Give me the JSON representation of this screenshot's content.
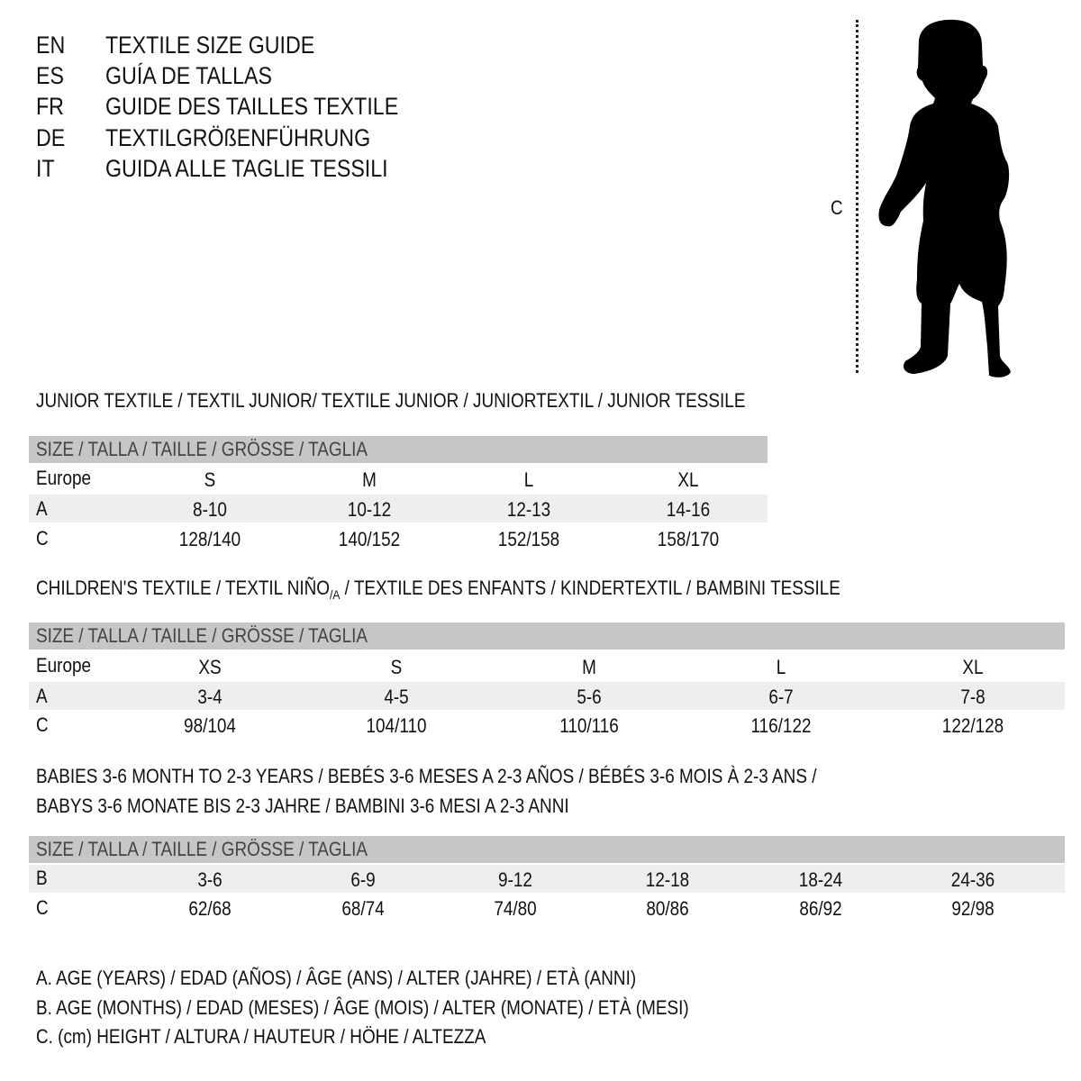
{
  "titles": [
    {
      "code": "EN",
      "text": "TEXTILE SIZE GUIDE"
    },
    {
      "code": "ES",
      "text": "GUÍA DE TALLAS"
    },
    {
      "code": "FR",
      "text": "GUIDE DES TAILLES TEXTILE"
    },
    {
      "code": "DE",
      "text": "TEXTILGRÖßENFÜHRUNG"
    },
    {
      "code": "IT",
      "text": "GUIDA ALLE TAGLIE TESSILI"
    }
  ],
  "figure": {
    "measure_label": "C",
    "icon": "child-silhouette-icon"
  },
  "size_header": "SIZE / TALLA / TAILLE / GRÖSSE / TAGLIA",
  "junior": {
    "heading": "JUNIOR TEXTILE / TEXTIL JUNIOR/ TEXTILE JUNIOR / JUNIORTEXTIL / JUNIOR TESSILE",
    "rows": [
      {
        "label": "Europe",
        "values": [
          "S",
          "M",
          "L",
          "XL"
        ]
      },
      {
        "label": "A",
        "values": [
          "8-10",
          "10-12",
          "12-13",
          "14-16"
        ]
      },
      {
        "label": "C",
        "values": [
          "128/140",
          "140/152",
          "152/158",
          "158/170"
        ]
      }
    ]
  },
  "children": {
    "heading_pre": "CHILDREN'S TEXTILE / TEXTIL NIÑO",
    "heading_sub": "/A",
    "heading_post": " / TEXTILE DES ENFANTS / KINDERTEXTIL / BAMBINI TESSILE",
    "rows": [
      {
        "label": "Europe",
        "values": [
          "XS",
          "S",
          "M",
          "L",
          "XL"
        ]
      },
      {
        "label": "A",
        "values": [
          "3-4",
          "4-5",
          "5-6",
          "6-7",
          "7-8"
        ]
      },
      {
        "label": "C",
        "values": [
          "98/104",
          "104/110",
          "110/116",
          "116/122",
          "122/128"
        ]
      }
    ]
  },
  "babies": {
    "heading_line1": "BABIES 3-6 MONTH TO 2-3 YEARS / BEBÉS 3-6 MESES A 2-3 AÑOS / BÉBÉS 3-6 MOIS À 2-3 ANS /",
    "heading_line2": "BABYS 3-6 MONATE BIS 2-3 JAHRE / BAMBINI 3-6 MESI A 2-3 ANNI",
    "rows": [
      {
        "label": "B",
        "values": [
          "3-6",
          "6-9",
          "9-12",
          "12-18",
          "18-24",
          "24-36"
        ]
      },
      {
        "label": "C",
        "values": [
          "62/68",
          "68/74",
          "74/80",
          "80/86",
          "86/92",
          "92/98"
        ]
      }
    ]
  },
  "legend": [
    "A. AGE (YEARS) / EDAD (AÑOS) / ÂGE (ANS) / ALTER (JAHRE) / ETÀ (ANNI)",
    "B. AGE (MONTHS) / EDAD (MESES) / ÂGE (MOIS) / ALTER (MONATE) / ETÀ (MESI)",
    "C. (cm) HEIGHT / ALTURA / HAUTEUR / HÖHE / ALTEZZA"
  ],
  "colors": {
    "header_bar": "#c6c6c6",
    "row_band": "#eeeeee",
    "text": "#111111"
  }
}
